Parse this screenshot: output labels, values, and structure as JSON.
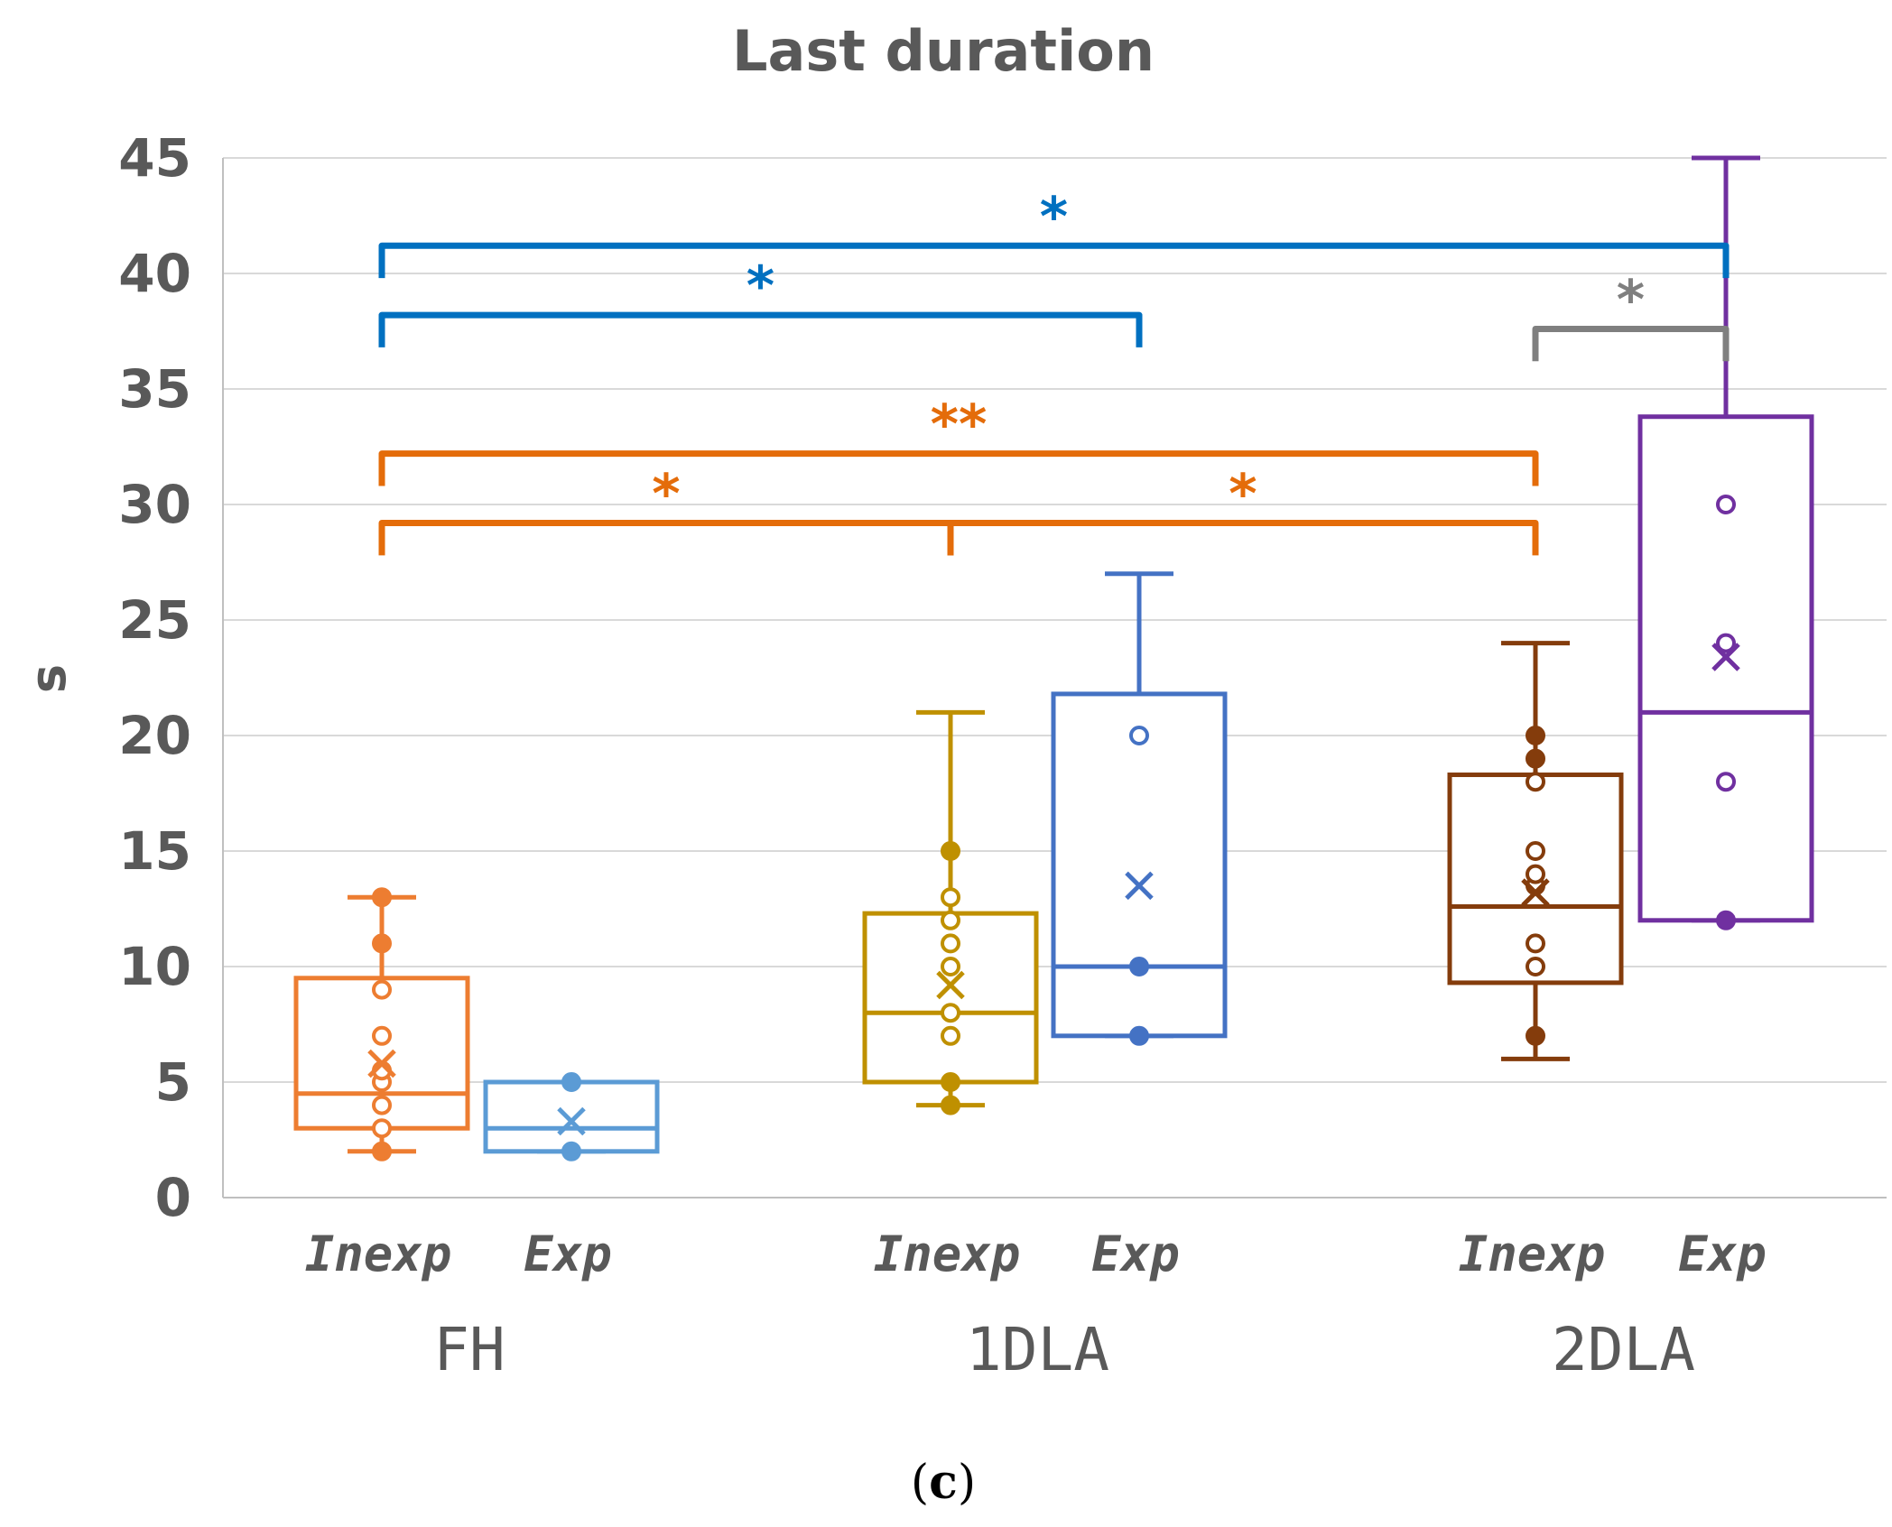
{
  "caption": {
    "open": "(",
    "letter": "c",
    "close": ")"
  },
  "chart_data": {
    "type": "box",
    "title": "Last duration",
    "ylabel": "s",
    "xlabel": "",
    "ylim": [
      0,
      45
    ],
    "yticks": [
      0,
      5,
      10,
      15,
      20,
      25,
      30,
      35,
      40,
      45
    ],
    "grid": true,
    "groups": [
      "FH",
      "1DLA",
      "2DLA"
    ],
    "series": [
      {
        "name": "FH Inexp",
        "group": "FH",
        "label": "Inexp",
        "color": "#ED7D31",
        "min": 2,
        "q1": 3,
        "median": 4.5,
        "q3": 9.5,
        "max": 13,
        "mean": 5.8,
        "points": [
          2,
          3,
          4,
          5,
          5.5,
          7,
          9,
          11,
          13
        ],
        "filled": [
          2,
          11,
          13
        ]
      },
      {
        "name": "FH Exp",
        "group": "FH",
        "label": "Exp",
        "color": "#5B9BD5",
        "min": 2,
        "q1": 2,
        "median": 3,
        "q3": 5,
        "max": 5,
        "mean": 3.3,
        "points": [
          2,
          5
        ],
        "filled": [
          2,
          5
        ]
      },
      {
        "name": "1DLA Inexp",
        "group": "1DLA",
        "label": "Inexp",
        "color": "#BF9000",
        "min": 4,
        "q1": 5,
        "median": 8,
        "q3": 12.3,
        "max": 21,
        "mean": 9.2,
        "points": [
          4,
          5,
          7,
          8,
          10,
          11,
          12,
          13,
          15
        ],
        "filled": [
          4,
          5,
          15
        ]
      },
      {
        "name": "1DLA Exp",
        "group": "1DLA",
        "label": "Exp",
        "color": "#4472C4",
        "min": 7,
        "q1": 7,
        "median": 10,
        "q3": 21.8,
        "max": 27,
        "mean": 13.5,
        "points": [
          7,
          10,
          20
        ],
        "filled": [
          7,
          10
        ]
      },
      {
        "name": "2DLA Inexp",
        "group": "2DLA",
        "label": "Inexp",
        "color": "#843C0C",
        "min": 6,
        "q1": 9.3,
        "median": 12.6,
        "q3": 18.3,
        "max": 24,
        "mean": 13.2,
        "points": [
          7,
          10,
          11,
          13.5,
          14,
          15,
          18,
          19,
          20
        ],
        "filled": [
          7,
          19,
          20
        ]
      },
      {
        "name": "2DLA Exp",
        "group": "2DLA",
        "label": "Exp",
        "color": "#7030A0",
        "min": 12,
        "q1": 12,
        "median": 21,
        "q3": 33.8,
        "max": 45,
        "mean": 23.4,
        "points": [
          12,
          18,
          24,
          30
        ],
        "filled": [
          12
        ]
      }
    ],
    "annotations": [
      {
        "type": "bracket",
        "from": 0,
        "to": 5,
        "y": 41.2,
        "leg_to": 39.8,
        "label": "*",
        "color": "#0070C0"
      },
      {
        "type": "bracket",
        "from": 0,
        "to": 3,
        "y": 38.2,
        "leg_to": 36.8,
        "label": "*",
        "color": "#0070C0"
      },
      {
        "type": "bracket",
        "from": 4,
        "to": 5,
        "y": 37.6,
        "leg_to": 36.2,
        "label": "*",
        "color": "#7F7F7F"
      },
      {
        "type": "bracket",
        "from": 0,
        "to": 4,
        "y": 32.2,
        "leg_to": 30.8,
        "label": "**",
        "color": "#E46C0A"
      },
      {
        "type": "bracket",
        "from": 0,
        "to": 2,
        "y": 29.2,
        "leg_to": 27.8,
        "label": "*",
        "color": "#E46C0A"
      },
      {
        "type": "bracket",
        "from": 2,
        "to": 4,
        "y": 29.2,
        "leg_to": 27.8,
        "label": "*",
        "color": "#E46C0A"
      }
    ]
  }
}
